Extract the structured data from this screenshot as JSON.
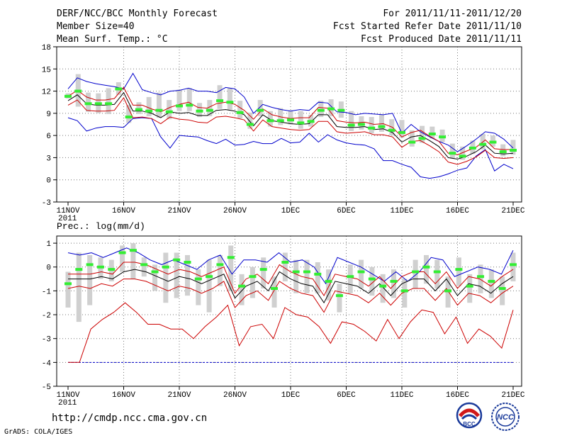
{
  "header": {
    "title": "DERF/NCC/BCC Monthly Forecast",
    "member_size": "Member Size=40",
    "variable": "Mean Surf. Temp.: °C",
    "period": "For 2011/11/11-2011/12/20",
    "started": "Fcst Started Refer Date 2011/11/10",
    "produced": "Fcst Produced Date 2011/11/11"
  },
  "footer": {
    "url": "http://cmdp.ncc.cma.gov.cn",
    "credit": "GrADS: COLA/IGES",
    "logo_left_text": "BCC",
    "logo_right_text": "NCC"
  },
  "colors": {
    "box": "#d0d0d0",
    "median": "#33ee33",
    "envelope": "#0000cc",
    "spread": "#cc0000",
    "mean": "#000000",
    "floor": "#0000cc"
  },
  "chart_data": [
    {
      "type": "line",
      "title": "Mean Surf. Temp.: °C",
      "x_ticks": [
        "11NOV",
        "16NOV",
        "21NOV",
        "26NOV",
        "1DEC",
        "6DEC",
        "11DEC",
        "16DEC",
        "21DEC"
      ],
      "x_year": "2011",
      "x_range": [
        0,
        40
      ],
      "ylim": [
        -3,
        18
      ],
      "y_ticks": [
        18,
        15,
        12,
        9,
        6,
        3,
        0,
        -3
      ],
      "series": [
        {
          "name": "max",
          "values": [
            12.3,
            13.8,
            13.3,
            13,
            12.8,
            12.6,
            12.3,
            14.4,
            12.2,
            11.8,
            11.5,
            12,
            12.1,
            12.4,
            12,
            12,
            11.8,
            12.5,
            12.3,
            11.2,
            9,
            10.2,
            9.8,
            9.5,
            9.3,
            9.5,
            9.4,
            10.5,
            10.4,
            9.2,
            9.1,
            8.8,
            9,
            8.9,
            8.8,
            9,
            6.3,
            7.5,
            6.5,
            5.8,
            5.2,
            4.7,
            3.8,
            4.6,
            5.5,
            6.5,
            6.3,
            5.5,
            4.3
          ]
        },
        {
          "name": "upper",
          "values": [
            11.3,
            12.1,
            11.2,
            10.8,
            10.8,
            11,
            12.5,
            10.1,
            10.1,
            9.6,
            9.2,
            9.8,
            10.2,
            10.5,
            9.8,
            9.7,
            10.3,
            10.5,
            10.2,
            9.4,
            8.2,
            9.6,
            8.8,
            8.5,
            8.3,
            8.4,
            8.4,
            9.8,
            9.7,
            8,
            7.8,
            7.7,
            7.8,
            7.5,
            7.6,
            7.1,
            5.8,
            6.4,
            6.7,
            5.9,
            5.2,
            3.6,
            3.4,
            3.9,
            4.4,
            5.4,
            4.2,
            4.1,
            4.1
          ]
        },
        {
          "name": "mean",
          "values": [
            10.7,
            11.5,
            10.3,
            10.1,
            10.1,
            10.2,
            11.8,
            9.3,
            9.3,
            9,
            8.4,
            9.2,
            9,
            9.1,
            8.7,
            8.7,
            9.4,
            9.5,
            9.3,
            8.8,
            7.3,
            8.8,
            8,
            7.8,
            7.6,
            7.5,
            7.6,
            8.8,
            8.8,
            7.2,
            7.1,
            7.1,
            7.2,
            6.8,
            6.9,
            6.4,
            5.1,
            5.8,
            6,
            5.3,
            4.5,
            3,
            2.8,
            3.2,
            3.8,
            4.7,
            3.6,
            3.5,
            3.6
          ]
        },
        {
          "name": "lower",
          "values": [
            10.1,
            10.8,
            9.4,
            9.3,
            9.3,
            9.4,
            11.1,
            8.4,
            8.5,
            8.3,
            7.6,
            8.5,
            8.2,
            8.1,
            7.8,
            7.7,
            8.5,
            8.6,
            8.4,
            8.1,
            6.6,
            8.1,
            7.2,
            7,
            6.8,
            6.7,
            6.8,
            7.9,
            7.9,
            6.5,
            6.3,
            6.4,
            6.5,
            6.1,
            6.1,
            5.8,
            4.4,
            5.2,
            5.3,
            4.6,
            3.8,
            2.4,
            2.1,
            2.5,
            3.1,
            4,
            3,
            2.9,
            3
          ]
        },
        {
          "name": "min",
          "values": [
            8.4,
            8,
            6.6,
            7,
            7.2,
            7.2,
            7.1,
            8.3,
            8.4,
            8.3,
            5.8,
            4.3,
            6,
            5.9,
            5.8,
            5.3,
            4.9,
            5.5,
            4.7,
            4.8,
            5.2,
            4.9,
            4.9,
            5.6,
            5,
            5.1,
            6.3,
            5.1,
            6.1,
            5.4,
            5,
            4.8,
            4.7,
            4.2,
            2.6,
            2.6,
            2.1,
            1.7,
            0.4,
            0.2,
            0.4,
            0.8,
            1.3,
            1.6,
            3.2,
            4.1,
            1.2,
            2.1,
            1.5
          ]
        },
        {
          "name": "median",
          "values": [
            11.3,
            12,
            10.3,
            10.3,
            10.3,
            12.3,
            8.5,
            9.5,
            9.3,
            9.4,
            9.2,
            10,
            10.1,
            9.3,
            9.4,
            10.7,
            10.5,
            9.1,
            7.5,
            9.4,
            8,
            8,
            8.1,
            7.7,
            7.9,
            9.4,
            9.6,
            9.4,
            7.4,
            7.5,
            7,
            7.2,
            6.7,
            6.4,
            5.1,
            5.6,
            6.2,
            5.8,
            3.6,
            3.2,
            4.3,
            4.8,
            5.1,
            3.8,
            4
          ]
        },
        {
          "name": "box_low",
          "values": [
            11,
            9.9,
            9.2,
            9,
            8.9,
            11.5,
            7.7,
            8.9,
            8.6,
            8.4,
            8.2,
            9.3,
            9.3,
            8.5,
            8.6,
            9.6,
            9.5,
            8.3,
            6.9,
            8.6,
            7.2,
            7.4,
            7.5,
            6.9,
            7.2,
            8.5,
            8.6,
            8.4,
            6.6,
            6.8,
            6.3,
            6.5,
            6,
            5.7,
            4.5,
            5,
            5.6,
            5.1,
            2.9,
            2.7,
            3.5,
            4.1,
            4.5,
            3.2,
            3.4
          ]
        },
        {
          "name": "box_high",
          "values": [
            11.7,
            14.3,
            11.8,
            11.7,
            12.4,
            13.2,
            10.1,
            10.5,
            11.2,
            11.8,
            10.8,
            12.2,
            12.4,
            10.4,
            10.8,
            12.8,
            12.4,
            10.7,
            9.1,
            10.8,
            9.3,
            9.7,
            9.4,
            9.3,
            8.8,
            10.7,
            10.9,
            10.6,
            9.3,
            8.6,
            8.5,
            8.8,
            8.2,
            8.1,
            6.7,
            7.3,
            7.2,
            6.8,
            4.9,
            4.5,
            5.3,
            6.2,
            6,
            4.8,
            5.4
          ]
        }
      ]
    },
    {
      "type": "line",
      "title": "Prec.: log(mm/d)",
      "x_ticks": [
        "11NOV",
        "16NOV",
        "21NOV",
        "26NOV",
        "1DEC",
        "6DEC",
        "11DEC",
        "16DEC",
        "21DEC"
      ],
      "x_year": "2011",
      "x_range": [
        0,
        40
      ],
      "ylim": [
        -5,
        1.3
      ],
      "y_ticks": [
        1,
        0,
        -1,
        -2,
        -3,
        -4,
        -5
      ],
      "floor_value": -4,
      "series": [
        {
          "name": "max",
          "values": [
            0.6,
            0.5,
            0.6,
            0.4,
            0.6,
            0.8,
            0.6,
            0.3,
            0.1,
            0.3,
            0.1,
            -0.1,
            0.3,
            0.5,
            -0.3,
            0.3,
            0.3,
            0.2,
            0.6,
            0.2,
            0.3,
            0,
            -0.7,
            0.4,
            0.2,
            0,
            -0.3,
            -0.6,
            -0.2,
            -0.6,
            -0.2,
            0.4,
            0.3,
            -0.4,
            -0.2,
            0,
            -0.1,
            -0.3,
            0.7
          ]
        },
        {
          "name": "upper",
          "values": [
            -0.3,
            -0.3,
            -0.3,
            -0.2,
            -0.3,
            0.2,
            0.2,
            0.1,
            -0.1,
            -0.3,
            -0.1,
            -0.2,
            -0.4,
            -0.2,
            0,
            -1.1,
            -0.5,
            -0.3,
            -0.7,
            0.1,
            -0.2,
            -0.4,
            -0.5,
            -1.2,
            -0.3,
            -0.4,
            -0.5,
            -0.8,
            -0.4,
            -0.9,
            -0.4,
            -0.2,
            -0.2,
            -0.7,
            -0.2,
            -0.9,
            -0.4,
            -0.5,
            -0.8,
            -0.4,
            -0.1
          ]
        },
        {
          "name": "mean",
          "values": [
            -0.5,
            -0.5,
            -0.5,
            -0.4,
            -0.5,
            -0.2,
            -0.1,
            -0.2,
            -0.4,
            -0.6,
            -0.4,
            -0.5,
            -0.7,
            -0.5,
            -0.3,
            -1.3,
            -0.8,
            -0.6,
            -1,
            -0.2,
            -0.5,
            -0.7,
            -0.8,
            -1.5,
            -0.6,
            -0.7,
            -0.8,
            -1.1,
            -0.7,
            -1.2,
            -0.7,
            -0.5,
            -0.5,
            -1,
            -0.5,
            -1.2,
            -0.7,
            -0.8,
            -1.1,
            -0.7,
            -0.4
          ]
        },
        {
          "name": "lower",
          "values": [
            -0.9,
            -0.8,
            -0.9,
            -0.7,
            -0.8,
            -0.5,
            -0.5,
            -0.6,
            -0.8,
            -1,
            -0.8,
            -0.9,
            -1.1,
            -0.9,
            -0.6,
            -1.7,
            -1.2,
            -1,
            -1.4,
            -0.6,
            -0.9,
            -1.1,
            -1.2,
            -1.9,
            -1,
            -1.1,
            -1.2,
            -1.5,
            -1.1,
            -1.6,
            -1.1,
            -0.9,
            -0.9,
            -1.4,
            -0.9,
            -1.6,
            -1.1,
            -1.2,
            -1.5,
            -1.1,
            -0.8
          ]
        },
        {
          "name": "min",
          "values": [
            -4,
            -4,
            -2.6,
            -2.2,
            -1.9,
            -1.5,
            -1.9,
            -2.4,
            -2.4,
            -2.6,
            -2.6,
            -3,
            -2.5,
            -2.1,
            -1.6,
            -3.3,
            -2.5,
            -2.4,
            -3,
            -1.7,
            -2,
            -2.1,
            -2.5,
            -3.2,
            -2.3,
            -2.4,
            -2.7,
            -3.1,
            -2.2,
            -3,
            -2.3,
            -1.8,
            -1.9,
            -2.8,
            -2.1,
            -3.2,
            -2.6,
            -2.9,
            -3.4,
            -1.8
          ]
        },
        {
          "name": "median",
          "values": [
            -0.7,
            -0.1,
            0.1,
            0,
            -0.1,
            0.6,
            0.7,
            0.1,
            -0.2,
            0,
            0.3,
            0.2,
            -0.5,
            -0.4,
            0.1,
            0.4,
            -0.8,
            -0.4,
            -0.1,
            -0.9,
            0.2,
            -0.2,
            -0.2,
            -0.3,
            -0.6,
            -1.2,
            -0.4,
            -0.2,
            -0.5,
            -0.8,
            -0.6,
            -1,
            -0.2,
            0,
            -0.2,
            -1,
            -0.1,
            -0.8,
            -0.4,
            -0.6,
            -0.9,
            0.1
          ]
        },
        {
          "name": "box_low",
          "values": [
            -1.7,
            -2.3,
            -1.6,
            -0.5,
            -0.6,
            -0.2,
            -0.5,
            -0.4,
            -1,
            -1.5,
            -1.3,
            -1.2,
            -1.6,
            -1.9,
            -0.8,
            -1,
            -1.6,
            -1.3,
            -0.9,
            -1.7,
            -0.6,
            -1.1,
            -1.1,
            -1.1,
            -1.4,
            -1.9,
            -1.1,
            -0.9,
            -1.2,
            -1.5,
            -1.3,
            -1.7,
            -0.9,
            -0.7,
            -0.9,
            -1.7,
            -0.8,
            -1.5,
            -1.1,
            -1.3,
            -1.6,
            -0.6
          ]
        },
        {
          "name": "box_high",
          "values": [
            -0.2,
            0.6,
            0.5,
            0.4,
            0.3,
            0.9,
            1,
            0.4,
            0.1,
            0.6,
            0.6,
            0.5,
            -0.1,
            0.3,
            0.5,
            0.9,
            -0.3,
            0,
            0.4,
            -0.4,
            0.6,
            0.3,
            0.3,
            0.2,
            -0.1,
            -0.7,
            0.1,
            0.3,
            0,
            -0.3,
            -0.1,
            -0.5,
            0.3,
            0.5,
            0.3,
            -0.4,
            0.4,
            -0.3,
            0.1,
            -0.1,
            -0.4,
            0.6
          ]
        }
      ]
    }
  ]
}
